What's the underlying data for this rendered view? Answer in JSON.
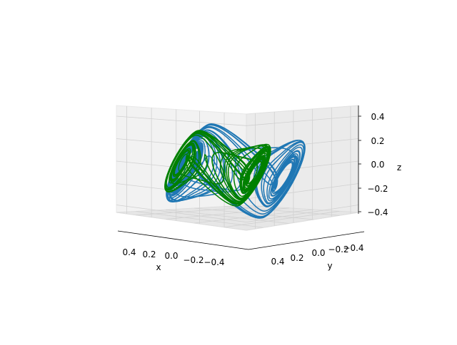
{
  "chart_data": {
    "type": "line",
    "projection": "3d",
    "title": "",
    "xlabel": "x",
    "ylabel": "y",
    "zlabel": "z",
    "xlim": [
      -0.5,
      0.5
    ],
    "ylim": [
      -0.5,
      0.5
    ],
    "zlim": [
      -0.55,
      0.48
    ],
    "xticks": [
      "0.4",
      "0.2",
      "0.0",
      "−0.2",
      "−0.4"
    ],
    "yticks": [
      "0.4",
      "0.2",
      "0.0",
      "−0.2",
      "−0.4"
    ],
    "zticks": [
      "0.4",
      "0.2",
      "0.0",
      "−0.2",
      "−0.4"
    ],
    "grid": true,
    "legend": "none",
    "series": [
      {
        "color": "#1f77b4",
        "values": "chaotic double-scroll attractor trajectory, |x|,|y| ≤ 0.5, z ∈ [−0.5, 0.45]"
      },
      {
        "color": "#008000",
        "values": "denser double-scroll attractor trajectory, |x|,|y| ≤ 0.45, z ∈ [−0.3, 0.3]"
      }
    ]
  }
}
